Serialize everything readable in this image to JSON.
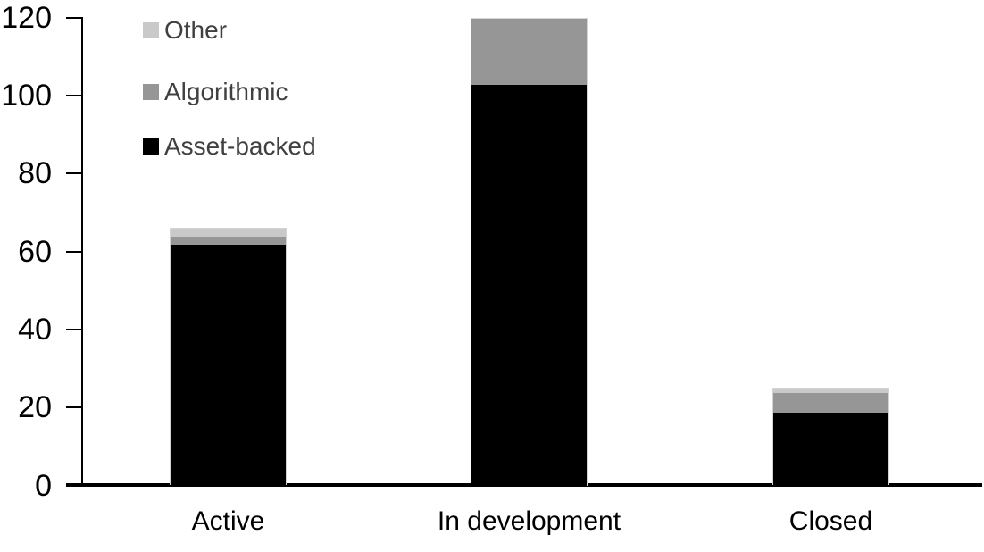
{
  "chart_data": {
    "type": "bar",
    "stacked": true,
    "title": "",
    "xlabel": "",
    "ylabel": "",
    "categories": [
      "Active",
      "In development",
      "Closed"
    ],
    "series": [
      {
        "name": "Asset-backed",
        "color": "#000000",
        "values": [
          62,
          103,
          19
        ]
      },
      {
        "name": "Algorithmic",
        "color": "#969696",
        "values": [
          2,
          17,
          5
        ]
      },
      {
        "name": "Other",
        "color": "#c9c9c9",
        "values": [
          2,
          0,
          1
        ]
      }
    ],
    "totals": [
      66,
      120,
      25
    ],
    "ylim": [
      0,
      120
    ],
    "yticks": [
      0,
      20,
      40,
      60,
      80,
      100,
      120
    ],
    "ytick_labels": [
      "0",
      "20",
      "40",
      "60",
      "80",
      "100",
      "120"
    ],
    "grid": false,
    "legend_position": "top-left",
    "legend_order_top_to_bottom": [
      "Other",
      "Algorithmic",
      "Asset-backed"
    ]
  },
  "legend": {
    "text_color": "#404040",
    "items": [
      {
        "label": "Other",
        "color": "#c9c9c9"
      },
      {
        "label": "Algorithmic",
        "color": "#969696"
      },
      {
        "label": "Asset-backed",
        "color": "#000000"
      }
    ]
  },
  "colors": {
    "axis": "#000000",
    "bar_border": "#d4d4d4",
    "background": "#ffffff"
  }
}
